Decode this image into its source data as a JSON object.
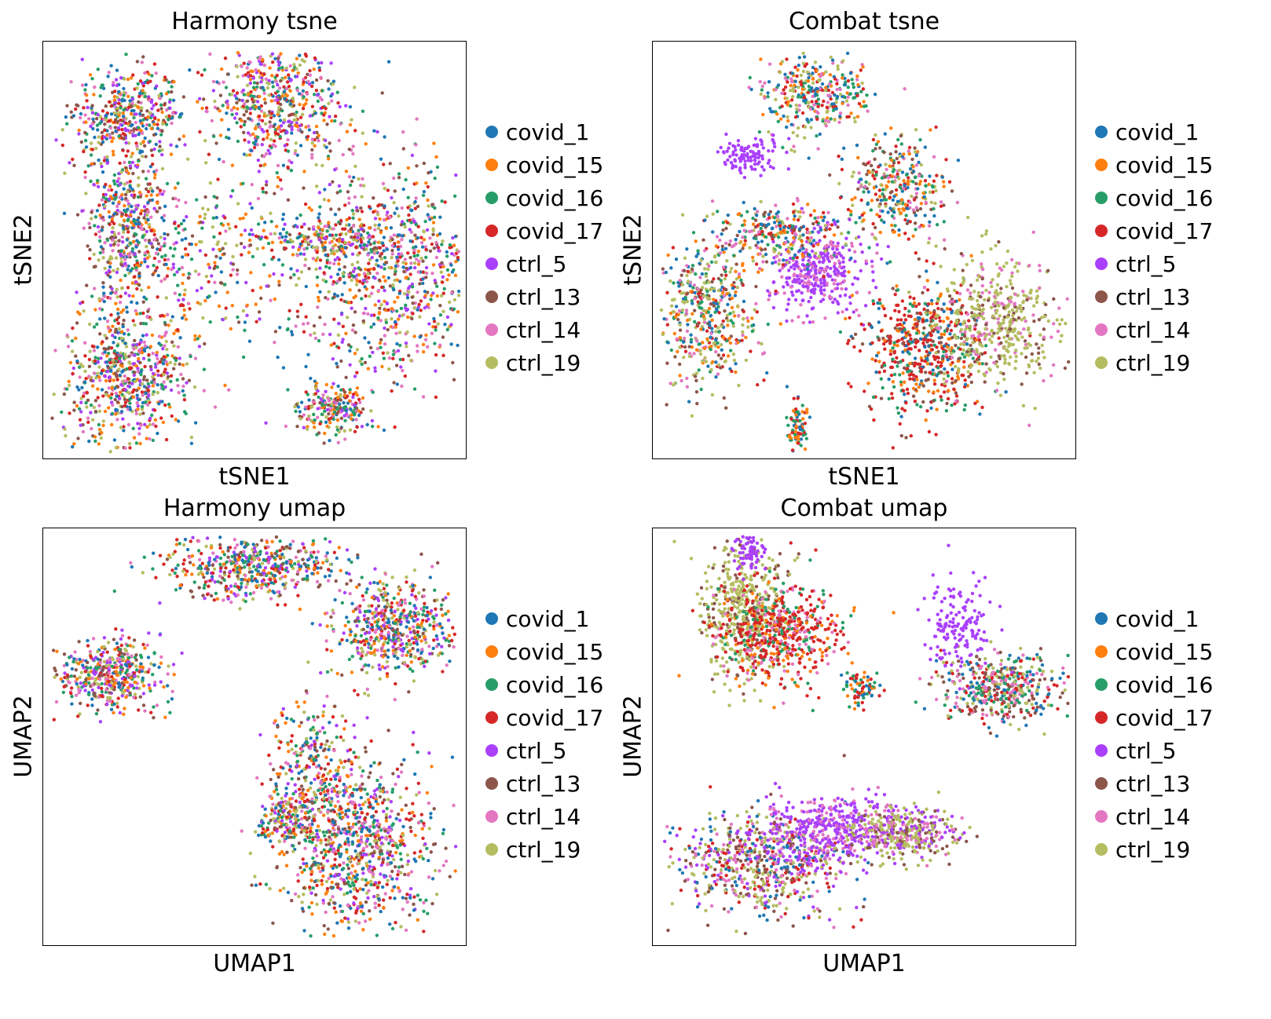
{
  "legend_entries": [
    {
      "label": "covid_1",
      "color": "#1f77b4"
    },
    {
      "label": "covid_15",
      "color": "#ff7f0e"
    },
    {
      "label": "covid_16",
      "color": "#279e68"
    },
    {
      "label": "covid_17",
      "color": "#d62728"
    },
    {
      "label": "ctrl_5",
      "color": "#aa40fc"
    },
    {
      "label": "ctrl_13",
      "color": "#8c564b"
    },
    {
      "label": "ctrl_14",
      "color": "#e377c2"
    },
    {
      "label": "ctrl_19",
      "color": "#b5bd61"
    }
  ],
  "chart_data": [
    {
      "type": "scatter",
      "title": "Harmony tsne",
      "xlabel": "tSNE1",
      "ylabel": "tSNE2",
      "clusters": [
        {
          "cx": 0.2,
          "cy": 0.83,
          "sx": 0.07,
          "sy": 0.05,
          "n": 70,
          "colors": [
            0,
            1,
            2,
            3,
            4,
            5,
            6,
            7
          ]
        },
        {
          "cx": 0.2,
          "cy": 0.55,
          "sx": 0.05,
          "sy": 0.1,
          "n": 85,
          "colors": [
            0,
            1,
            2,
            3,
            4,
            5,
            6,
            7
          ]
        },
        {
          "cx": 0.2,
          "cy": 0.2,
          "sx": 0.08,
          "sy": 0.08,
          "n": 110,
          "colors": [
            0,
            1,
            2,
            3,
            4,
            5,
            6,
            7
          ]
        },
        {
          "cx": 0.55,
          "cy": 0.85,
          "sx": 0.07,
          "sy": 0.08,
          "n": 95,
          "colors": [
            0,
            1,
            2,
            3,
            4,
            5,
            6,
            7
          ]
        },
        {
          "cx": 0.82,
          "cy": 0.45,
          "sx": 0.13,
          "sy": 0.13,
          "n": 160,
          "colors": [
            0,
            1,
            2,
            3,
            4,
            5,
            6,
            7
          ]
        },
        {
          "cx": 0.66,
          "cy": 0.53,
          "sx": 0.08,
          "sy": 0.02,
          "n": 30,
          "colors": [
            0,
            1,
            2,
            3,
            4,
            5,
            6,
            7
          ]
        },
        {
          "cx": 0.68,
          "cy": 0.12,
          "sx": 0.04,
          "sy": 0.03,
          "n": 35,
          "colors": [
            0,
            1,
            2,
            3,
            4,
            5,
            6,
            7
          ]
        },
        {
          "cx": 0.4,
          "cy": 0.5,
          "sx": 0.1,
          "sy": 0.1,
          "n": 40,
          "colors": [
            0,
            1,
            2,
            3,
            4,
            5,
            6,
            7
          ]
        }
      ]
    },
    {
      "type": "scatter",
      "title": "Combat tsne",
      "xlabel": "tSNE1",
      "ylabel": "tSNE2",
      "clusters": [
        {
          "cx": 0.38,
          "cy": 0.87,
          "sx": 0.06,
          "sy": 0.05,
          "n": 55,
          "colors": [
            0,
            1,
            2,
            3,
            6,
            7
          ]
        },
        {
          "cx": 0.58,
          "cy": 0.65,
          "sx": 0.06,
          "sy": 0.06,
          "n": 55,
          "colors": [
            0,
            1,
            2,
            3,
            5,
            6,
            7
          ]
        },
        {
          "cx": 0.39,
          "cy": 0.45,
          "sx": 0.05,
          "sy": 0.05,
          "n": 60,
          "colors": [
            4,
            4,
            4,
            6
          ]
        },
        {
          "cx": 0.3,
          "cy": 0.54,
          "sx": 0.07,
          "sy": 0.04,
          "n": 45,
          "colors": [
            0,
            1,
            2,
            3,
            5,
            6,
            7
          ]
        },
        {
          "cx": 0.13,
          "cy": 0.35,
          "sx": 0.06,
          "sy": 0.09,
          "n": 80,
          "colors": [
            0,
            1,
            2,
            3,
            5,
            6,
            7,
            7
          ]
        },
        {
          "cx": 0.64,
          "cy": 0.27,
          "sx": 0.07,
          "sy": 0.08,
          "n": 95,
          "colors": [
            0,
            1,
            2,
            3,
            3,
            3,
            5
          ]
        },
        {
          "cx": 0.81,
          "cy": 0.33,
          "sx": 0.07,
          "sy": 0.08,
          "n": 75,
          "colors": [
            5,
            6,
            7,
            7,
            7
          ]
        },
        {
          "cx": 0.23,
          "cy": 0.73,
          "sx": 0.04,
          "sy": 0.02,
          "n": 18,
          "colors": [
            4
          ]
        },
        {
          "cx": 0.34,
          "cy": 0.08,
          "sx": 0.01,
          "sy": 0.03,
          "n": 14,
          "colors": [
            0,
            1,
            2,
            3
          ]
        }
      ]
    },
    {
      "type": "scatter",
      "title": "Harmony umap",
      "xlabel": "UMAP1",
      "ylabel": "UMAP2",
      "clusters": [
        {
          "cx": 0.16,
          "cy": 0.65,
          "sx": 0.06,
          "sy": 0.04,
          "n": 75,
          "colors": [
            0,
            1,
            2,
            3,
            4,
            5,
            6,
            7
          ]
        },
        {
          "cx": 0.5,
          "cy": 0.91,
          "sx": 0.1,
          "sy": 0.04,
          "n": 90,
          "colors": [
            0,
            1,
            2,
            3,
            4,
            5,
            6,
            7
          ]
        },
        {
          "cx": 0.82,
          "cy": 0.76,
          "sx": 0.07,
          "sy": 0.06,
          "n": 90,
          "colors": [
            0,
            1,
            2,
            3,
            4,
            5,
            6,
            7
          ]
        },
        {
          "cx": 0.74,
          "cy": 0.24,
          "sx": 0.09,
          "sy": 0.1,
          "n": 150,
          "colors": [
            0,
            1,
            2,
            3,
            4,
            5,
            6,
            7
          ]
        },
        {
          "cx": 0.64,
          "cy": 0.45,
          "sx": 0.05,
          "sy": 0.07,
          "n": 40,
          "colors": [
            0,
            1,
            2,
            3,
            4,
            5,
            6,
            7
          ]
        },
        {
          "cx": 0.57,
          "cy": 0.3,
          "sx": 0.03,
          "sy": 0.03,
          "n": 25,
          "colors": [
            0,
            1,
            2,
            3,
            4,
            5,
            6,
            7
          ]
        }
      ]
    },
    {
      "type": "scatter",
      "title": "Combat umap",
      "xlabel": "UMAP1",
      "ylabel": "UMAP2",
      "clusters": [
        {
          "cx": 0.22,
          "cy": 0.8,
          "sx": 0.05,
          "sy": 0.08,
          "n": 75,
          "colors": [
            5,
            7,
            7,
            7
          ]
        },
        {
          "cx": 0.3,
          "cy": 0.75,
          "sx": 0.07,
          "sy": 0.06,
          "n": 95,
          "colors": [
            1,
            2,
            3,
            3,
            3,
            6
          ]
        },
        {
          "cx": 0.82,
          "cy": 0.62,
          "sx": 0.07,
          "sy": 0.04,
          "n": 75,
          "colors": [
            0,
            2,
            3,
            5,
            6,
            7
          ]
        },
        {
          "cx": 0.26,
          "cy": 0.2,
          "sx": 0.1,
          "sy": 0.06,
          "n": 110,
          "colors": [
            0,
            3,
            4,
            5,
            6,
            7,
            7
          ]
        },
        {
          "cx": 0.42,
          "cy": 0.28,
          "sx": 0.08,
          "sy": 0.04,
          "n": 70,
          "colors": [
            4,
            4,
            4,
            6
          ]
        },
        {
          "cx": 0.59,
          "cy": 0.27,
          "sx": 0.06,
          "sy": 0.03,
          "n": 60,
          "colors": [
            4,
            5,
            6,
            7,
            7
          ]
        },
        {
          "cx": 0.72,
          "cy": 0.77,
          "sx": 0.04,
          "sy": 0.05,
          "n": 25,
          "colors": [
            4
          ]
        },
        {
          "cx": 0.23,
          "cy": 0.95,
          "sx": 0.02,
          "sy": 0.03,
          "n": 12,
          "colors": [
            4
          ]
        },
        {
          "cx": 0.49,
          "cy": 0.62,
          "sx": 0.02,
          "sy": 0.02,
          "n": 12,
          "colors": [
            0,
            1,
            2,
            3
          ]
        }
      ]
    }
  ]
}
